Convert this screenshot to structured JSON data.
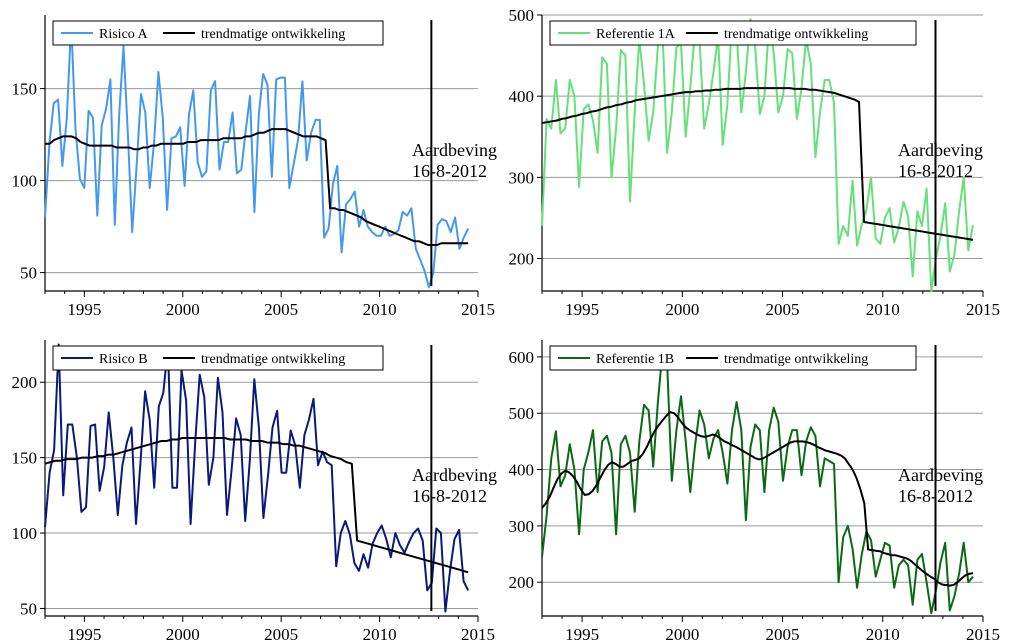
{
  "charts": [
    {
      "id": "risico-a",
      "type": "line",
      "color": "#4499ee",
      "xlim": [
        1993,
        2015
      ],
      "ylim": [
        40,
        190
      ],
      "yticks": [
        50,
        100,
        150
      ],
      "xticks": [
        1995,
        2000,
        2005,
        2010,
        2015
      ],
      "legend": [
        "Risico A",
        "trendmatige ontwikkeling"
      ],
      "annotation": {
        "line1": "Aardbeving",
        "line2": "16-8-2012",
        "x": 2012.63
      },
      "series": [
        {
          "name": "Risico A",
          "color": "#4499ee",
          "width": 2,
          "values": [
            80,
            120,
            142,
            144,
            108,
            134,
            186,
            128,
            101,
            96,
            138,
            134,
            81,
            130,
            139,
            155,
            76,
            136,
            173,
            125,
            72,
            108,
            147,
            137,
            96,
            121,
            159,
            134,
            84,
            123,
            124,
            129,
            97,
            136,
            149,
            110,
            102,
            105,
            149,
            154,
            106,
            121,
            121,
            137,
            104,
            106,
            127,
            146,
            83,
            136,
            158,
            152,
            102,
            155,
            156,
            156,
            96,
            109,
            122,
            154,
            111,
            126,
            133,
            133,
            69,
            74,
            98,
            108,
            61,
            87,
            90,
            94,
            75,
            84,
            75,
            72,
            70,
            70,
            75,
            70,
            71,
            73,
            83,
            81,
            85,
            63,
            57,
            51,
            42,
            50,
            76,
            79,
            78,
            72,
            80,
            63,
            69,
            74
          ]
        },
        {
          "name": "trendmatige ontwikkeling",
          "color": "#000000",
          "width": 2,
          "values": [
            120,
            120,
            122,
            123,
            124,
            124,
            124,
            123,
            121,
            120,
            119,
            119,
            119,
            119,
            119,
            119,
            118,
            118,
            118,
            118,
            117,
            117,
            118,
            118,
            119,
            119,
            120,
            120,
            120,
            120,
            120,
            120,
            121,
            121,
            121,
            122,
            122,
            122,
            122,
            122,
            123,
            123,
            123,
            123,
            123,
            124,
            124,
            125,
            126,
            126,
            127,
            128,
            128,
            128,
            128,
            127,
            126,
            125,
            124,
            124,
            124,
            124,
            123,
            122,
            85,
            85,
            84,
            84,
            83,
            82,
            81,
            80,
            78,
            77,
            76,
            75,
            74,
            73,
            72,
            71,
            70,
            69,
            68,
            67,
            67,
            66,
            65,
            65,
            65,
            66,
            66,
            66,
            66,
            66,
            66,
            66
          ]
        }
      ]
    },
    {
      "id": "referentie-1a",
      "type": "line",
      "color": "#66e07a",
      "xlim": [
        1993,
        2015
      ],
      "ylim": [
        160,
        500
      ],
      "yticks": [
        200,
        300,
        400,
        500
      ],
      "xticks": [
        1995,
        2000,
        2005,
        2010,
        2015
      ],
      "legend": [
        "Referentie 1A",
        "trendmatige ontwikkeling"
      ],
      "annotation": {
        "line1": "Aardbeving",
        "line2": "16-8-2012",
        "x": 2012.63
      },
      "series": [
        {
          "name": "Referentie 1A",
          "color": "#66e07a",
          "width": 2,
          "values": [
            240,
            372,
            360,
            420,
            354,
            360,
            420,
            400,
            288,
            384,
            390,
            370,
            330,
            448,
            440,
            300,
            360,
            457,
            450,
            270,
            380,
            470,
            415,
            345,
            380,
            462,
            480,
            330,
            380,
            460,
            465,
            350,
            410,
            480,
            468,
            360,
            390,
            430,
            474,
            340,
            390,
            492,
            480,
            380,
            430,
            495,
            460,
            378,
            400,
            490,
            454,
            380,
            400,
            458,
            453,
            372,
            410,
            470,
            440,
            325,
            380,
            420,
            420,
            392,
            218,
            240,
            228,
            296,
            216,
            242,
            260,
            300,
            225,
            218,
            250,
            262,
            220,
            238,
            270,
            252,
            178,
            258,
            240,
            286,
            160,
            200,
            228,
            268,
            184,
            205,
            258,
            300,
            210,
            241
          ]
        },
        {
          "name": "trendmatige ontwikkeling",
          "color": "#000000",
          "width": 2,
          "values": [
            367,
            368,
            369,
            370,
            372,
            373,
            375,
            376,
            378,
            379,
            381,
            382,
            384,
            386,
            387,
            389,
            390,
            392,
            393,
            395,
            396,
            397,
            398,
            399,
            400,
            401,
            402,
            403,
            404,
            405,
            405,
            406,
            406,
            407,
            407,
            408,
            408,
            409,
            409,
            409,
            409,
            410,
            410,
            410,
            410,
            410,
            410,
            410,
            410,
            410,
            410,
            409,
            409,
            409,
            408,
            408,
            407,
            406,
            405,
            404,
            402,
            400,
            398,
            396,
            393,
            245,
            244,
            243,
            242,
            241,
            240,
            239,
            238,
            237,
            236,
            235,
            234,
            233,
            232,
            231,
            230,
            229,
            228,
            227,
            226,
            225,
            224,
            223
          ]
        }
      ]
    },
    {
      "id": "risico-b",
      "type": "line",
      "color": "#0a1a7a",
      "xlim": [
        1993,
        2015
      ],
      "ylim": [
        45,
        228
      ],
      "yticks": [
        50,
        100,
        150,
        200
      ],
      "xticks": [
        1995,
        2000,
        2005,
        2010,
        2015
      ],
      "legend": [
        "Risico B",
        "trendmatige ontwikkeling"
      ],
      "annotation": {
        "line1": "Aardbeving",
        "line2": "16-8-2012",
        "x": 2012.63
      },
      "series": [
        {
          "name": "Risico B",
          "color": "#0a1a7a",
          "width": 2,
          "values": [
            104,
            140,
            155,
            225,
            125,
            172,
            172,
            150,
            114,
            117,
            171,
            172,
            128,
            144,
            180,
            150,
            112,
            145,
            160,
            170,
            106,
            148,
            194,
            175,
            130,
            184,
            193,
            223,
            130,
            130,
            208,
            188,
            106,
            160,
            205,
            190,
            132,
            150,
            203,
            180,
            112,
            142,
            176,
            165,
            108,
            148,
            202,
            170,
            110,
            138,
            170,
            181,
            140,
            140,
            168,
            158,
            130,
            165,
            175,
            189,
            145,
            154,
            147,
            145,
            78,
            100,
            108,
            99,
            80,
            75,
            86,
            77,
            93,
            100,
            105,
            96,
            84,
            100,
            92,
            87,
            94,
            100,
            103,
            95,
            62,
            67,
            103,
            100,
            48,
            75,
            96,
            102,
            68,
            62
          ]
        },
        {
          "name": "trendmatige ontwikkeling",
          "color": "#000000",
          "width": 2,
          "values": [
            146,
            147,
            148,
            148,
            149,
            149,
            149,
            150,
            150,
            150,
            151,
            151,
            152,
            152,
            153,
            154,
            155,
            156,
            157,
            158,
            159,
            160,
            161,
            161,
            162,
            162,
            163,
            163,
            163,
            163,
            163,
            163,
            163,
            163,
            163,
            162,
            162,
            162,
            162,
            161,
            161,
            161,
            160,
            160,
            160,
            159,
            159,
            158,
            158,
            157,
            156,
            155,
            154,
            153,
            151,
            150,
            149,
            147,
            146,
            95,
            94,
            93,
            92,
            91,
            90,
            89,
            88,
            87,
            86,
            85,
            84,
            83,
            82,
            81,
            80,
            79,
            78,
            77,
            76,
            75,
            74
          ]
        }
      ]
    },
    {
      "id": "referentie-1b",
      "type": "line",
      "color": "#0a6a14",
      "xlim": [
        1993,
        2015
      ],
      "ylim": [
        140,
        630
      ],
      "yticks": [
        200,
        300,
        400,
        500,
        600
      ],
      "xticks": [
        1995,
        2000,
        2005,
        2010,
        2015
      ],
      "legend": [
        "Referentie 1B",
        "trendmatige ontwikkeling"
      ],
      "annotation": {
        "line1": "Aardbeving",
        "line2": "16-8-2012",
        "x": 2012.63
      },
      "series": [
        {
          "name": "Referentie 1B",
          "color": "#0a6a14",
          "width": 2,
          "values": [
            245,
            318,
            420,
            468,
            370,
            390,
            445,
            400,
            285,
            400,
            430,
            470,
            360,
            450,
            460,
            430,
            285,
            445,
            460,
            430,
            325,
            450,
            515,
            505,
            405,
            520,
            610,
            590,
            380,
            470,
            530,
            450,
            360,
            440,
            505,
            480,
            420,
            455,
            470,
            430,
            375,
            470,
            520,
            470,
            310,
            440,
            480,
            470,
            360,
            470,
            510,
            485,
            380,
            440,
            470,
            470,
            390,
            450,
            475,
            460,
            370,
            420,
            415,
            410,
            200,
            280,
            300,
            260,
            190,
            250,
            290,
            275,
            210,
            240,
            270,
            265,
            190,
            230,
            240,
            230,
            160,
            240,
            250,
            200,
            145,
            185,
            235,
            270,
            150,
            175,
            215,
            270,
            200,
            210
          ]
        },
        {
          "name": "trendmatige ontwikkeling",
          "color": "#000000",
          "width": 2,
          "values": [
            332,
            340,
            352,
            368,
            383,
            393,
            398,
            395,
            388,
            378,
            365,
            355,
            356,
            362,
            372,
            385,
            398,
            408,
            413,
            410,
            405,
            405,
            410,
            415,
            417,
            420,
            428,
            440,
            455,
            468,
            478,
            487,
            495,
            502,
            500,
            493,
            483,
            475,
            470,
            466,
            462,
            459,
            458,
            460,
            462,
            460,
            455,
            450,
            447,
            443,
            440,
            436,
            432,
            428,
            424,
            420,
            418,
            420,
            424,
            428,
            432,
            436,
            440,
            444,
            448,
            450,
            450,
            450,
            449,
            447,
            444,
            440,
            437,
            434,
            432,
            430,
            428,
            425,
            420,
            410,
            400,
            385,
            365,
            340,
            258,
            257,
            256,
            255,
            252,
            250,
            248,
            248,
            246,
            244,
            242,
            238,
            232,
            226,
            220,
            215,
            210,
            206,
            200,
            196,
            195,
            194,
            195,
            200,
            206,
            212,
            215,
            216
          ]
        }
      ]
    }
  ]
}
